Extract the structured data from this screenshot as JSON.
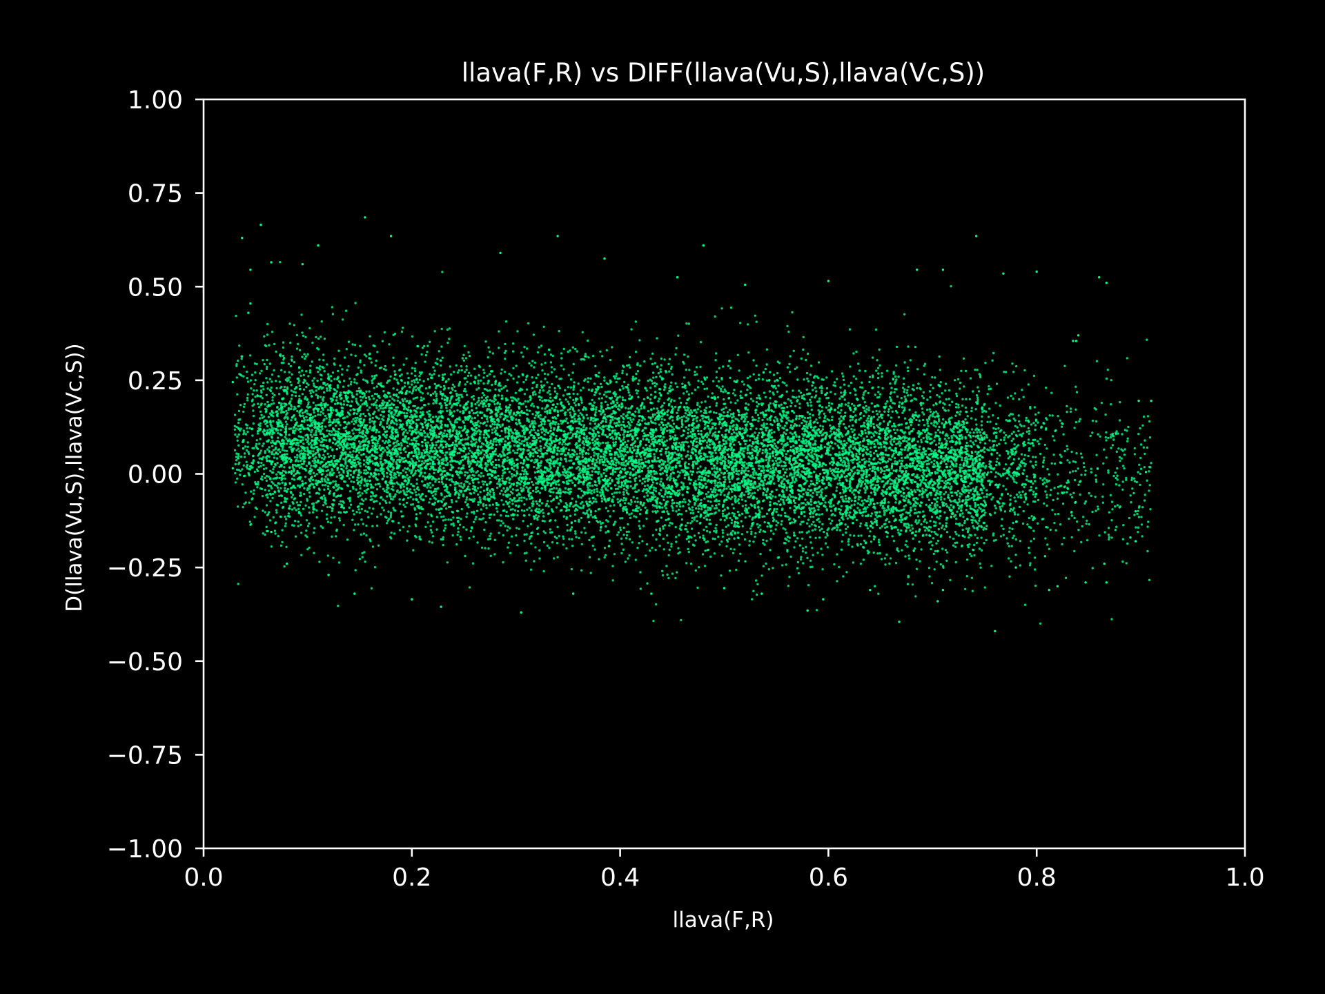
{
  "chart_data": {
    "type": "scatter",
    "title": "llava(F,R) vs DIFF(llava(Vu,S),llava(Vc,S))",
    "xlabel": "llava(F,R)",
    "ylabel": "D(llava(Vu,S),llava(Vc,S))",
    "xlim": [
      0.0,
      1.0
    ],
    "ylim": [
      -1.0,
      1.0
    ],
    "x_ticks": [
      "0.0",
      "0.2",
      "0.4",
      "0.6",
      "0.8",
      "1.0"
    ],
    "y_ticks": [
      "1.00",
      "0.75",
      "0.50",
      "0.25",
      "0.00",
      "−0.25",
      "−0.50",
      "−0.75",
      "−1.00"
    ],
    "grid": false,
    "colors": {
      "background": "#000000",
      "axes": "#ffffff",
      "points": "#00ff88"
    },
    "points": [
      [
        0.037,
        0.63
      ],
      [
        0.055,
        0.665
      ],
      [
        0.155,
        0.685
      ],
      [
        0.18,
        0.635
      ],
      [
        0.34,
        0.635
      ],
      [
        0.285,
        0.59
      ],
      [
        0.48,
        0.61
      ],
      [
        0.385,
        0.575
      ],
      [
        0.742,
        0.635
      ],
      [
        0.11,
        0.61
      ],
      [
        0.065,
        0.565
      ],
      [
        0.095,
        0.56
      ],
      [
        0.045,
        0.545
      ],
      [
        0.455,
        0.525
      ],
      [
        0.685,
        0.545
      ],
      [
        0.71,
        0.545
      ],
      [
        0.8,
        0.54
      ],
      [
        0.86,
        0.525
      ],
      [
        0.867,
        0.51
      ],
      [
        0.768,
        0.535
      ],
      [
        0.6,
        0.515
      ],
      [
        0.52,
        0.505
      ],
      [
        0.84,
        0.37
      ],
      [
        0.838,
        0.355
      ],
      [
        0.91,
        0.195
      ],
      [
        0.898,
        0.195
      ],
      [
        0.835,
        0.355
      ],
      [
        0.905,
        0.005
      ],
      [
        0.895,
        -0.1
      ],
      [
        0.89,
        -0.17
      ],
      [
        0.895,
        -0.18
      ],
      [
        0.865,
        -0.24
      ],
      [
        0.867,
        -0.29
      ],
      [
        0.847,
        -0.29
      ],
      [
        0.82,
        -0.3
      ],
      [
        0.812,
        -0.31
      ],
      [
        0.76,
        -0.42
      ],
      [
        0.668,
        -0.395
      ],
      [
        0.71,
        -0.31
      ],
      [
        0.705,
        -0.34
      ],
      [
        0.58,
        -0.365
      ],
      [
        0.595,
        -0.335
      ],
      [
        0.536,
        -0.32
      ],
      [
        0.305,
        -0.37
      ],
      [
        0.228,
        -0.355
      ],
      [
        0.2,
        -0.335
      ],
      [
        0.145,
        -0.32
      ],
      [
        0.12,
        -0.27
      ],
      [
        0.08,
        -0.24
      ],
      [
        0.065,
        -0.155
      ],
      [
        0.028,
        0.245
      ],
      [
        0.028,
        0.015
      ],
      [
        0.045,
        0.455
      ],
      [
        0.043,
        0.43
      ],
      [
        0.355,
        -0.32
      ],
      [
        0.43,
        -0.32
      ],
      [
        0.5,
        -0.305
      ],
      [
        0.64,
        -0.31
      ],
      [
        0.78,
        -0.25
      ],
      [
        0.808,
        -0.22
      ]
    ],
    "trend": {
      "slope": -0.12,
      "intercept": 0.1
    },
    "noise_sd": 0.115,
    "dense_point_count": 14000
  }
}
